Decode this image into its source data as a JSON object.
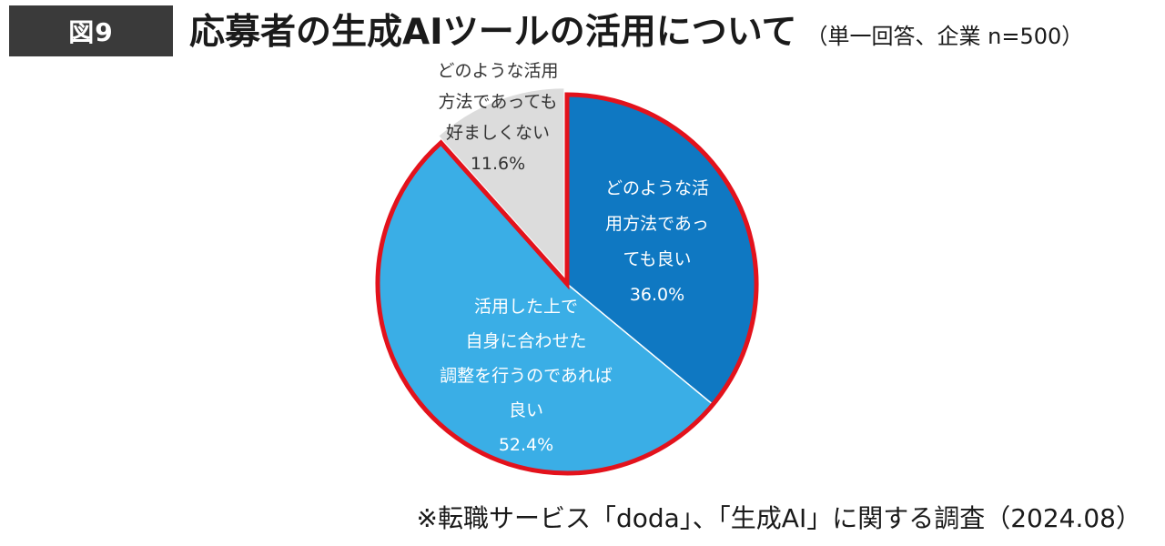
{
  "badge": "図9",
  "chart_data": {
    "type": "pie",
    "title": "応募者の生成AIツールの活用について",
    "subtitle": "（単一回答、企業 n=500）",
    "slices": [
      {
        "label_lines": [
          "どのような活",
          "用方法であっ",
          "ても良い"
        ],
        "value": 36.0,
        "value_label": "36.0%",
        "color": "#0f78c2",
        "label_color": "#ffffff",
        "highlighted": true
      },
      {
        "label_lines": [
          "活用した上で",
          "自身に合わせた",
          "調整を行うのであれば",
          "良い"
        ],
        "value": 52.4,
        "value_label": "52.4%",
        "color": "#3aaee6",
        "label_color": "#ffffff",
        "highlighted": true
      },
      {
        "label_lines": [
          "どのような活用",
          "方法であっても",
          "好ましくない"
        ],
        "value": 11.6,
        "value_label": "11.6%",
        "color": "#dcdcdc",
        "label_color": "#333333",
        "highlighted": false
      }
    ],
    "start": "12 o'clock",
    "direction": "clockwise",
    "highlight_color": "#e3121c"
  },
  "source": "※転職サービス「doda」、「生成AI」に関する調査（2024.08）"
}
